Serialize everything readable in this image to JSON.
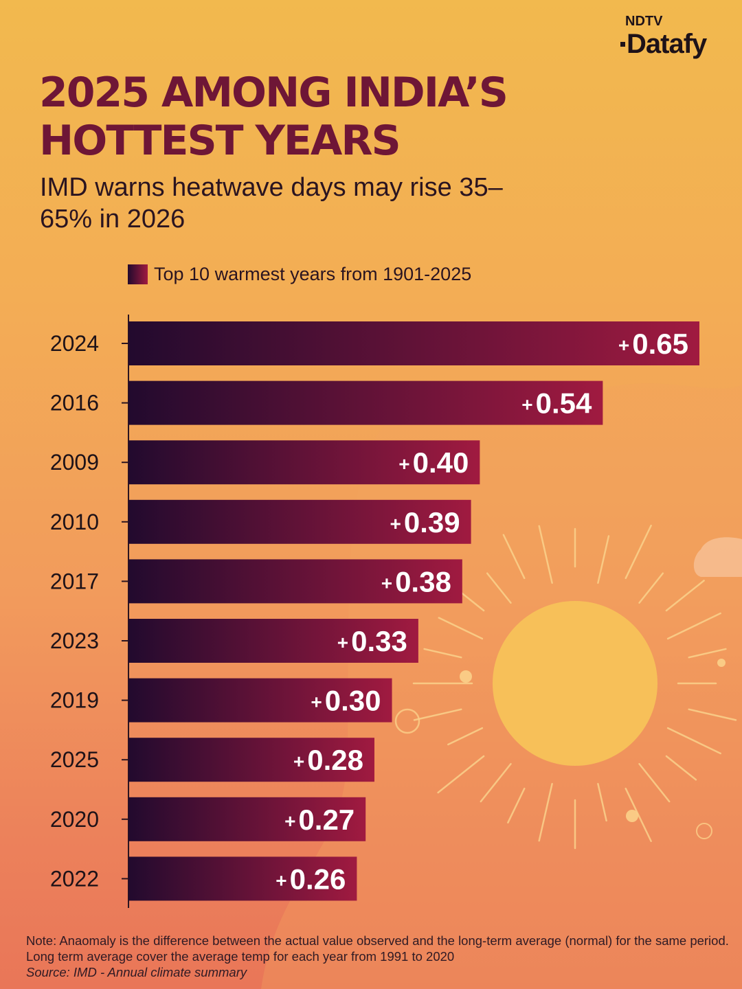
{
  "brand": {
    "top": "NDTV",
    "main": "Datafy"
  },
  "title": "2025 AMONG INDIA’S HOTTEST YEARS",
  "subtitle": "IMD warns heatwave days may rise 35–65% in 2026",
  "note": "Note: Anaomaly is the difference between the actual value observed and the long-term average (normal) for the same period. Long term average cover the average temp for each year from  1991 to 2020",
  "source": "Source: IMD - Annual climate summary",
  "chart_data": {
    "type": "bar",
    "orientation": "horizontal",
    "legend": "Top 10 warmest years from 1901-2025",
    "legend_position": "top",
    "grid": false,
    "categories": [
      "2024",
      "2016",
      "2009",
      "2010",
      "2017",
      "2023",
      "2019",
      "2025",
      "2020",
      "2022"
    ],
    "values": [
      0.65,
      0.54,
      0.4,
      0.39,
      0.38,
      0.33,
      0.3,
      0.28,
      0.27,
      0.26
    ],
    "data_labels": [
      "0.65",
      "0.54",
      "0.40",
      "0.39",
      "0.38",
      "0.33",
      "0.30",
      "0.28",
      "0.27",
      "0.26"
    ],
    "label_prefix": "+",
    "xlim": [
      0,
      0.65
    ],
    "colors": {
      "bar_start": "#220a2e",
      "bar_end": "#a01a40",
      "label": "#ffffff"
    }
  }
}
